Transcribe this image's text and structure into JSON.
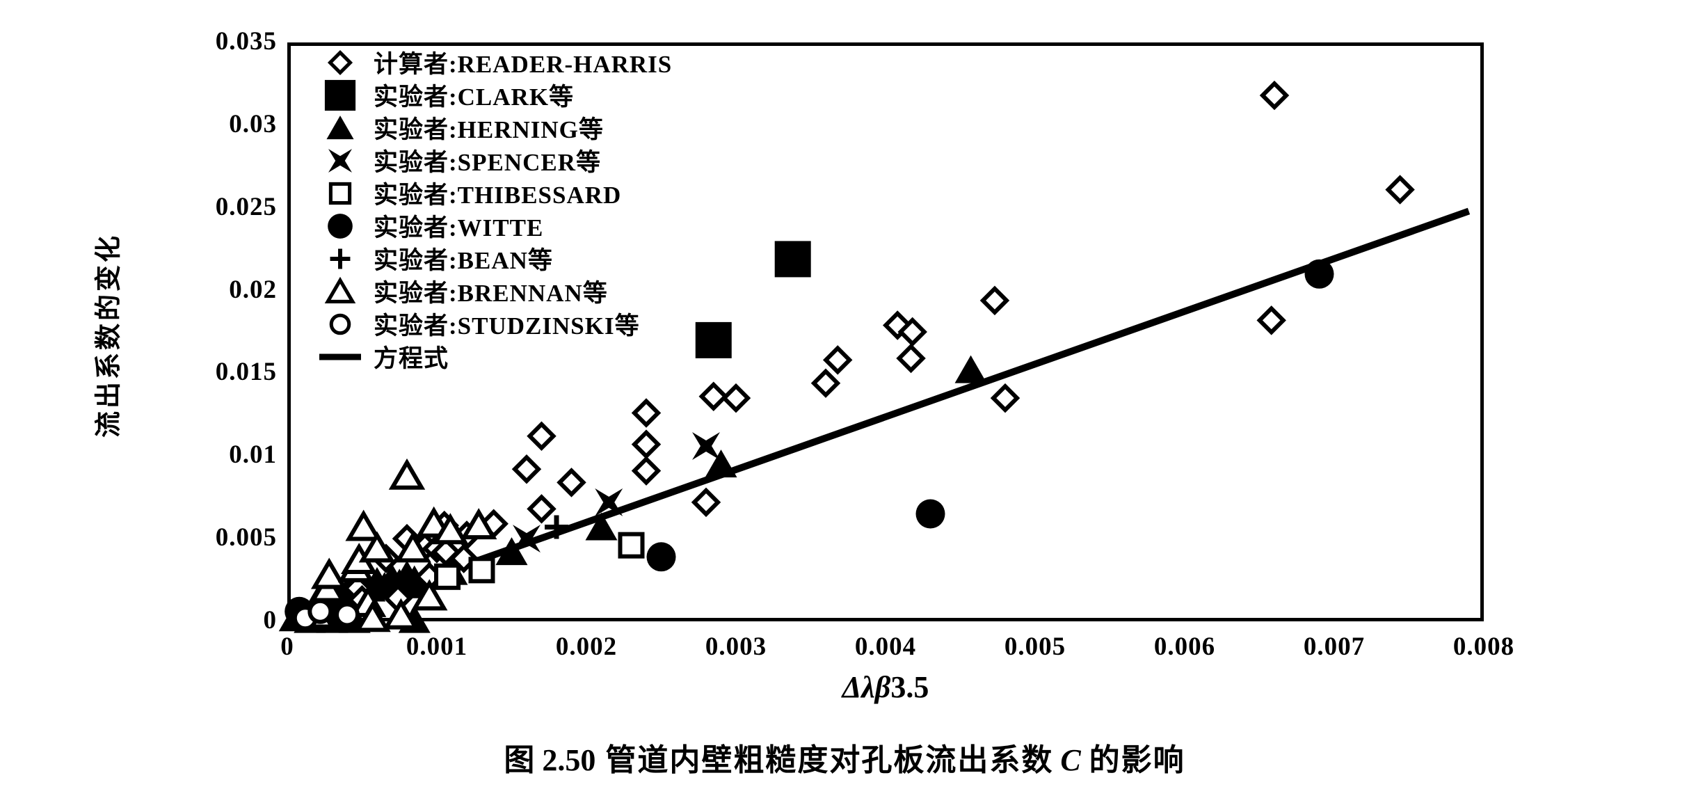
{
  "colors": {
    "foreground": "#000000",
    "background": "#ffffff"
  },
  "chart_data": {
    "type": "scatter",
    "caption": {
      "fig_label": "图 2.50",
      "title_pre": "管道内壁粗糙度对孔板流出系数",
      "title_var": "C",
      "title_post": "的影响"
    },
    "xlabel": {
      "base": "Δλβ",
      "exp": "3.5"
    },
    "ylabel": "流出系数的变化",
    "xlim": [
      0,
      0.008
    ],
    "ylim": [
      0,
      0.035
    ],
    "grid": false,
    "legend_position": "upper-left-inside",
    "x_ticks": {
      "values": [
        0,
        0.001,
        0.002,
        0.003,
        0.004,
        0.005,
        0.006,
        0.007,
        0.008
      ],
      "labels": [
        "0",
        "0.001",
        "0.002",
        "0.003",
        "0.004",
        "0.005",
        "0.006",
        "0.007",
        "0.008"
      ]
    },
    "y_ticks": {
      "values": [
        0,
        0.005,
        0.01,
        0.015,
        0.02,
        0.025,
        0.03,
        0.035
      ],
      "labels": [
        "0",
        "0.005",
        "0.01",
        "0.015",
        "0.02",
        "0.025",
        "0.03",
        "0.035"
      ]
    },
    "series": [
      {
        "id": "reader_harris",
        "label": "计算者:READER-HARRIS",
        "marker": "diamond-open",
        "points": [
          [
            0.00047,
            0.002
          ],
          [
            0.0005,
            0.0013
          ],
          [
            0.00066,
            0.0038
          ],
          [
            0.00074,
            0.0014
          ],
          [
            0.0008,
            0.005
          ],
          [
            0.00092,
            0.0045
          ],
          [
            0.00095,
            0.0027
          ],
          [
            0.001,
            0.0044
          ],
          [
            0.00105,
            0.0058
          ],
          [
            0.00106,
            0.0042
          ],
          [
            0.00118,
            0.0038
          ],
          [
            0.0012,
            0.0052
          ],
          [
            0.00138,
            0.0059
          ],
          [
            0.0016,
            0.0092
          ],
          [
            0.0017,
            0.0068
          ],
          [
            0.0017,
            0.0112
          ],
          [
            0.0019,
            0.0084
          ],
          [
            0.0024,
            0.0091
          ],
          [
            0.0024,
            0.0107
          ],
          [
            0.0024,
            0.0126
          ],
          [
            0.0028,
            0.0072
          ],
          [
            0.00285,
            0.0136
          ],
          [
            0.003,
            0.0135
          ],
          [
            0.0036,
            0.0144
          ],
          [
            0.00368,
            0.0158
          ],
          [
            0.00408,
            0.0179
          ],
          [
            0.00418,
            0.0175
          ],
          [
            0.00417,
            0.0159
          ],
          [
            0.00473,
            0.0194
          ],
          [
            0.0048,
            0.0135
          ],
          [
            0.0066,
            0.0318
          ],
          [
            0.00744,
            0.0261
          ],
          [
            0.00658,
            0.0182
          ]
        ]
      },
      {
        "id": "clark",
        "label": "实验者:CLARK等",
        "marker": "square-filled",
        "points": [
          [
            0.00285,
            0.017
          ],
          [
            0.00338,
            0.0219
          ]
        ]
      },
      {
        "id": "herning",
        "label": "实验者:HERNING等",
        "marker": "triangle-filled",
        "points": [
          [
            5e-05,
            0.0002
          ],
          [
            0.0001,
            0.0005
          ],
          [
            0.00015,
            0.0001
          ],
          [
            0.00018,
            0.0008
          ],
          [
            0.0002,
            0.0012
          ],
          [
            0.00025,
            0.0016
          ],
          [
            0.0003,
            0.0001
          ],
          [
            0.0003,
            0.0008
          ],
          [
            0.0003,
            0.002
          ],
          [
            0.00035,
            0.0013
          ],
          [
            0.0004,
            0.0018
          ],
          [
            0.00045,
            0.0001
          ],
          [
            0.00045,
            0.0024
          ],
          [
            0.0005,
            0.0015
          ],
          [
            0.00055,
            0.002
          ],
          [
            0.0006,
            0.0024
          ],
          [
            0.00065,
            0.0021
          ],
          [
            0.0007,
            0.0026
          ],
          [
            0.00075,
            0.0023
          ],
          [
            0.0008,
            0.0028
          ],
          [
            0.00085,
            0.0001
          ],
          [
            0.00085,
            0.0025
          ],
          [
            0.0009,
            0.0022
          ],
          [
            0.00095,
            0.0028
          ],
          [
            0.0011,
            0.003
          ],
          [
            0.0015,
            0.0042
          ],
          [
            0.0021,
            0.0057
          ],
          [
            0.0029,
            0.0095
          ],
          [
            0.00457,
            0.0152
          ]
        ]
      },
      {
        "id": "spencer",
        "label": "实验者:SPENCER等",
        "marker": "star4-filled",
        "points": [
          [
            0.0016,
            0.005
          ],
          [
            0.00215,
            0.0072
          ],
          [
            0.0028,
            0.0106
          ]
        ]
      },
      {
        "id": "thibessard",
        "label": "实验者:THIBESSARD",
        "marker": "square-open",
        "points": [
          [
            0.00107,
            0.0027
          ],
          [
            0.0013,
            0.0031
          ],
          [
            0.0023,
            0.0046
          ]
        ]
      },
      {
        "id": "witte",
        "label": "实验者:WITTE",
        "marker": "circle-filled",
        "points": [
          [
            8e-05,
            0.0006
          ],
          [
            0.00018,
            0.0003
          ],
          [
            0.0025,
            0.0039
          ],
          [
            0.0043,
            0.0065
          ],
          [
            0.0069,
            0.021
          ]
        ]
      },
      {
        "id": "bean",
        "label": "实验者:BEAN等",
        "marker": "plus",
        "points": [
          [
            0.0004,
            0.0008
          ],
          [
            0.0007,
            0.0019
          ],
          [
            0.0018,
            0.0057
          ]
        ]
      },
      {
        "id": "brennan",
        "label": "实验者:BRENNAN等",
        "marker": "triangle-open",
        "points": [
          [
            0.0002,
            0.0004
          ],
          [
            0.00027,
            0.002
          ],
          [
            0.00028,
            0.0028
          ],
          [
            0.00046,
            0.0032
          ],
          [
            0.00048,
            0.0037
          ],
          [
            0.00051,
            0.0057
          ],
          [
            0.00054,
            0.0011
          ],
          [
            0.00057,
            0.0002
          ],
          [
            0.0006,
            0.0044
          ],
          [
            0.00076,
            0.00035
          ],
          [
            0.0008,
            0.0088
          ],
          [
            0.00084,
            0.0044
          ],
          [
            0.00095,
            0.0015
          ],
          [
            0.00098,
            0.0059
          ],
          [
            0.00109,
            0.0055
          ],
          [
            0.00128,
            0.0058
          ]
        ]
      },
      {
        "id": "studzinski",
        "label": "实验者:STUDZINSKI等",
        "marker": "circle-open",
        "points": [
          [
            0.00012,
            0.0002
          ],
          [
            0.00022,
            0.0006
          ],
          [
            0.0004,
            0.0004
          ]
        ]
      },
      {
        "id": "equation",
        "label": "方程式",
        "marker": "line",
        "line_points": [
          [
            0.001,
            0.0028
          ],
          [
            0.0079,
            0.0248
          ]
        ]
      }
    ]
  }
}
